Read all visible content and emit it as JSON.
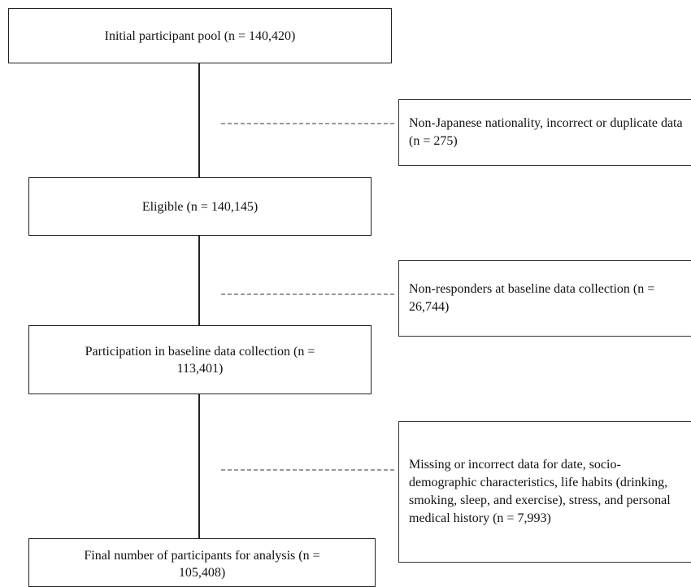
{
  "nodes": [
    {
      "label": "Initial participant pool (n = 140,420)"
    },
    {
      "label": "Eligible (n = 140,145)"
    },
    {
      "label": "Participation in baseline data collection (n = 113,401)"
    },
    {
      "label": "Final number of participants for analysis (n = 105,408)"
    }
  ],
  "exclusions": [
    {
      "label": "Non-Japanese nationality, incorrect or duplicate data (n = 275)"
    },
    {
      "label": "Non-responders at baseline data collection (n = 26,744)"
    },
    {
      "label": "Missing or incorrect data for date, socio-demographic characteristics, life habits (drinking, smoking, sleep, and exercise), stress, and personal medical history (n = 7,993)"
    }
  ]
}
